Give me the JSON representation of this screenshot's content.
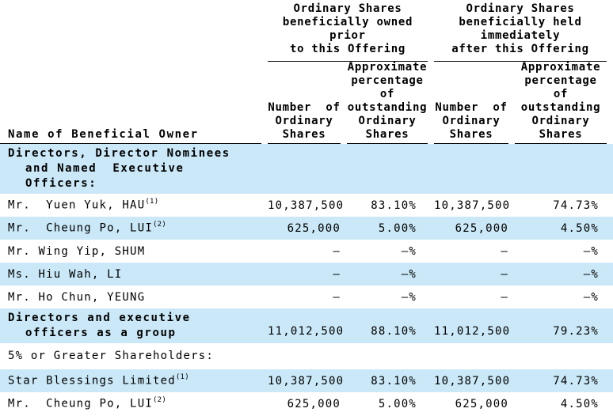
{
  "colors": {
    "highlight": "#cae8f7",
    "rule": "#000000",
    "text": "#000000"
  },
  "table": {
    "name_header": "Name of Beneficial Owner",
    "col_groups": [
      {
        "lines": [
          "Ordinary Shares",
          "beneficially owned",
          "prior",
          "to this Offering"
        ]
      },
      {
        "lines": [
          "Ordinary Shares",
          "beneficially held",
          "immediately",
          "after this Offering"
        ]
      }
    ],
    "sub_headers": {
      "number": [
        "Number  of",
        "Ordinary",
        "Shares"
      ],
      "percent": [
        "Approximate",
        "percentage",
        "of",
        "outstanding",
        "Ordinary",
        "Shares"
      ]
    },
    "rows": [
      {
        "kind": "section",
        "shaded": true,
        "lines": [
          "Directors, Director Nominees",
          "and Named  Executive",
          "Officers:"
        ],
        "cells": [
          "",
          "",
          "",
          ""
        ]
      },
      {
        "kind": "data",
        "shaded": false,
        "name": "Mr.  Yuen Yuk, HAU",
        "footnote": "(1)",
        "cells": [
          "10,387,500",
          "83.10%",
          "10,387,500",
          "74.73%"
        ]
      },
      {
        "kind": "data",
        "shaded": true,
        "name": "Mr.  Cheung Po, LUI",
        "footnote": "(2)",
        "cells": [
          "625,000",
          "5.00%",
          "625,000",
          "4.50%"
        ]
      },
      {
        "kind": "data",
        "shaded": false,
        "name": "Mr. Wing Yip, SHUM",
        "footnote": "",
        "cells": [
          "—",
          "—%",
          "—",
          "—%"
        ]
      },
      {
        "kind": "data",
        "shaded": true,
        "name": "Ms. Hiu Wah, LI",
        "footnote": "",
        "cells": [
          "—",
          "—%",
          "—",
          "—%"
        ]
      },
      {
        "kind": "data",
        "shaded": false,
        "name": "Mr. Ho Chun, YEUNG",
        "footnote": "",
        "cells": [
          "—",
          "—%",
          "—",
          "—%"
        ]
      },
      {
        "kind": "section-data",
        "shaded": true,
        "lines": [
          "Directors and executive",
          "officers as a group"
        ],
        "cells": [
          "11,012,500",
          "88.10%",
          "11,012,500",
          "79.23%"
        ]
      },
      {
        "kind": "section5",
        "shaded": false,
        "lines": [
          "5% or Greater Shareholders:"
        ],
        "cells": [
          "",
          "",
          "",
          ""
        ]
      },
      {
        "kind": "data",
        "shaded": true,
        "name": "Star Blessings Limited",
        "footnote": "(1)",
        "cells": [
          "10,387,500",
          "83.10%",
          "10,387,500",
          "74.73%"
        ]
      },
      {
        "kind": "data",
        "shaded": false,
        "name": "Mr.  Cheung Po, LUI",
        "footnote": "(2)",
        "cells": [
          "625,000",
          "5.00%",
          "625,000",
          "4.50%"
        ]
      }
    ]
  }
}
